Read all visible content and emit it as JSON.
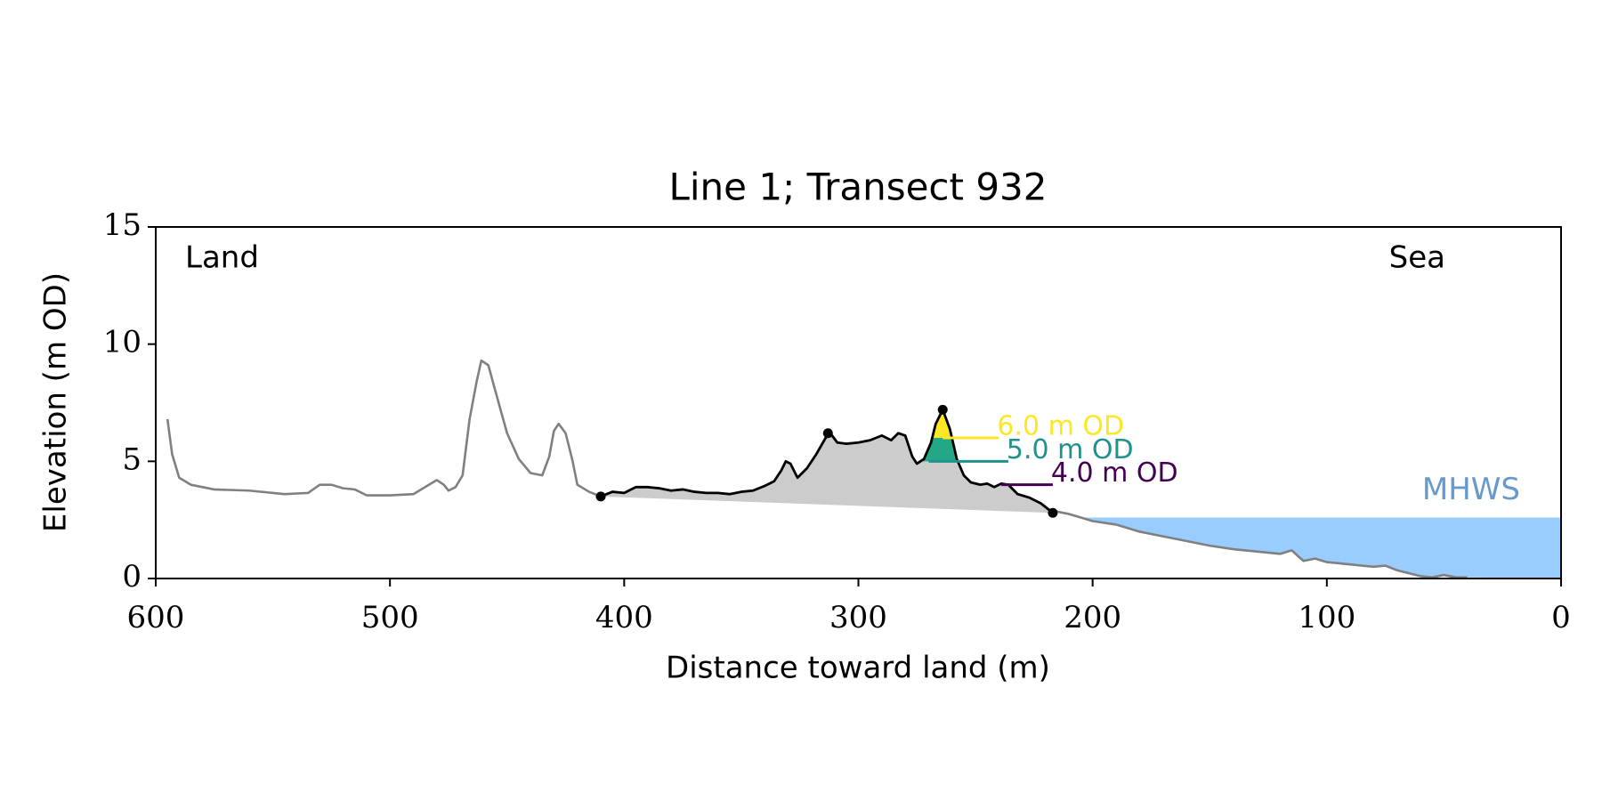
{
  "chart_data": {
    "type": "line",
    "title": "Line 1; Transect 932",
    "xlabel": "Distance toward land (m)",
    "ylabel": "Elevation (m OD)",
    "xlim": [
      600,
      0
    ],
    "ylim": [
      0,
      15
    ],
    "xticks": [
      600,
      500,
      400,
      300,
      200,
      100,
      0
    ],
    "yticks": [
      0,
      5,
      10,
      15
    ],
    "annotations": [
      "Land",
      "Sea"
    ],
    "profile": {
      "color": "#808080",
      "x": [
        595,
        593,
        590,
        585,
        575,
        560,
        545,
        535,
        530,
        525,
        520,
        515,
        510,
        500,
        490,
        485,
        480,
        477,
        475,
        472,
        469,
        466,
        463,
        461,
        458,
        455,
        450,
        445,
        440,
        435,
        432,
        430,
        428,
        425,
        422,
        420,
        415,
        410,
        313,
        217,
        215,
        210,
        205,
        200,
        190,
        180,
        170,
        160,
        150,
        140,
        130,
        120,
        115,
        110,
        105,
        100,
        90,
        80,
        75,
        70,
        60,
        55,
        50,
        45,
        40
      ],
      "values": [
        6.8,
        5.3,
        4.3,
        4.0,
        3.8,
        3.75,
        3.6,
        3.65,
        4.0,
        4.0,
        3.85,
        3.8,
        3.55,
        3.55,
        3.6,
        3.9,
        4.2,
        4.0,
        3.75,
        3.9,
        4.4,
        6.8,
        8.4,
        9.3,
        9.1,
        8.0,
        6.2,
        5.1,
        4.5,
        4.4,
        5.2,
        6.3,
        6.6,
        6.2,
        5.0,
        4.0,
        3.7,
        3.5,
        null,
        2.8,
        2.85,
        2.75,
        2.6,
        2.45,
        2.3,
        2.0,
        1.8,
        1.6,
        1.4,
        1.25,
        1.15,
        1.05,
        1.2,
        0.75,
        0.85,
        0.7,
        0.6,
        0.5,
        0.55,
        0.35,
        0.1,
        0.05,
        0.15,
        0.05,
        0.05
      ]
    },
    "dune": {
      "color": "#000000",
      "fill_color": "#cccccc",
      "x": [
        410,
        405,
        400,
        395,
        390,
        385,
        380,
        375,
        370,
        365,
        360,
        355,
        350,
        345,
        340,
        336,
        333,
        331,
        329,
        326,
        322,
        318,
        314,
        312,
        309,
        305,
        300,
        295,
        290,
        286,
        283,
        280,
        277,
        275,
        272,
        269,
        267,
        264,
        261,
        258,
        255,
        252,
        248,
        245,
        242,
        239,
        236,
        232,
        227,
        222,
        217
      ],
      "values": [
        3.5,
        3.7,
        3.65,
        3.9,
        3.9,
        3.85,
        3.75,
        3.8,
        3.7,
        3.65,
        3.65,
        3.6,
        3.7,
        3.75,
        3.95,
        4.15,
        4.6,
        5.0,
        4.9,
        4.3,
        4.7,
        5.3,
        6.0,
        6.2,
        5.8,
        5.75,
        5.8,
        5.9,
        6.1,
        5.9,
        6.2,
        6.1,
        5.2,
        4.9,
        5.1,
        5.8,
        6.6,
        7.2,
        6.4,
        5.1,
        4.4,
        4.1,
        4.0,
        4.05,
        3.9,
        4.05,
        4.0,
        3.6,
        3.45,
        3.2,
        2.8
      ]
    },
    "points": {
      "color": "#000000",
      "x": [
        410,
        313,
        264,
        217
      ],
      "values": [
        3.5,
        6.2,
        7.2,
        2.8
      ]
    },
    "levels": [
      {
        "label": "6.0 m OD",
        "value": 6,
        "x": [
          264,
          240
        ],
        "color": "#fde725",
        "fill": true
      },
      {
        "label": "5.0 m OD",
        "value": 5,
        "x": [
          270,
          236
        ],
        "color": "#21918c",
        "fill_color": "#22a884",
        "fill": true
      },
      {
        "label": "4.0 m OD",
        "value": 4,
        "x": [
          239,
          217
        ],
        "color": "#440154",
        "fill": false
      }
    ],
    "mhws": {
      "label": "MHWS",
      "value": 2.6,
      "color": "#6699cc",
      "fill_color": "#99ccff"
    }
  }
}
